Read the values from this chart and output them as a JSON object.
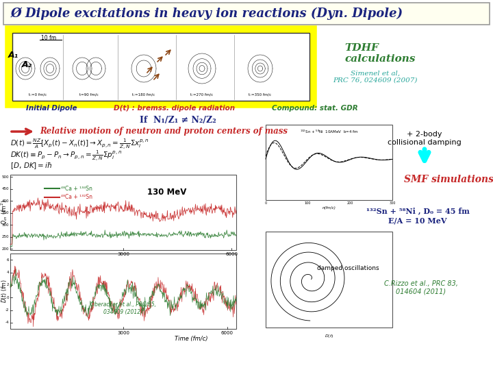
{
  "title": "Ø Dipole excitations in heavy ion reactions (Dyn. Dipole)",
  "title_color": "#1a237e",
  "title_bg": "#fffff0",
  "bg_color": "#ffffff",
  "tdhf_text": "TDHF\ncalculations",
  "tdhf_color": "#2e7d32",
  "simenel_text": "Simenel et al,\nPRC 76, 024609 (2007)",
  "simenel_color": "#26a69a",
  "initial_dipole_text": "Initial Dipole",
  "initial_dipole_color": "#1a237e",
  "dt_text": "D(t) : bremss. dipole radiation",
  "dt_color": "#c62828",
  "compound_text": "Compound: stat. GDR",
  "compound_color": "#2e7d32",
  "condition_text": "If  N₁/Z₁ ≠ N₂/Z₂",
  "condition_color": "#1a237e",
  "arrow_color": "#c62828",
  "two_body_text": "+ 2-body\ncollisional damping",
  "two_body_color": "#000000",
  "smf_text": "SMF simulations",
  "smf_color": "#c62828",
  "sn_ni_line1": "¹³²Sn + ⁵⁸Ni , D₀ = 45 fm",
  "sn_ni_line2": "E/A = 10 MeV",
  "sn_ni_color": "#1a237e",
  "damped_text": "damped oscillations",
  "rizzo_text": "C.Rizzo et al., PRC 83,\n014604 (2011)",
  "rizzo_color": "#2e7d32",
  "oberacker_text": "Oberacker et al., PRC 85,\n034609 (2012)",
  "oberacker_color": "#2e7d32",
  "ca_sn_text1": "⁴⁸Ca + ¹³⁴Sn",
  "ca_sn_text2": "⁴⁸Ca + ¹³²Sn",
  "mev_text": "130 MeV",
  "ca_color1": "#2e7d32",
  "ca_color2": "#c62828",
  "yellow_box_color": "#ffff00",
  "A1_label": "A₁",
  "A2_label": "A₂"
}
